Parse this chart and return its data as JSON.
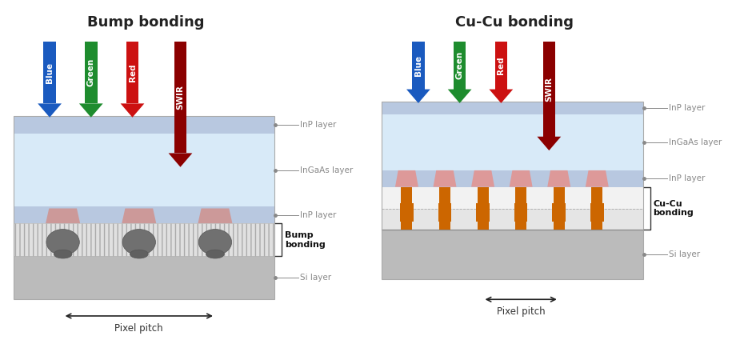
{
  "fig_width": 9.3,
  "fig_height": 4.3,
  "bg_color": "#ffffff",
  "title_left": "Bump bonding",
  "title_right": "Cu-Cu bonding",
  "title_fontsize": 13,
  "label_color": "#888888",
  "label_fontsize": 7.5,
  "arrow_colors": [
    "#1a5abf",
    "#1e8c2e",
    "#cc1111",
    "#8b0000"
  ],
  "arrow_labels": [
    "Blue",
    "Green",
    "Red",
    "SWIR"
  ],
  "inp_layer_color": "#b8c8e0",
  "ingaas_layer_color": "#d8eaf8",
  "si_layer_color": "#bbbbbb",
  "bump_gray": "#707070",
  "bump_dark": "#555555",
  "bump_pink": "#cc9999",
  "cu_orange": "#cc6600",
  "cu_pink": "#dd9999",
  "pixel_pitch_label": "Pixel pitch"
}
